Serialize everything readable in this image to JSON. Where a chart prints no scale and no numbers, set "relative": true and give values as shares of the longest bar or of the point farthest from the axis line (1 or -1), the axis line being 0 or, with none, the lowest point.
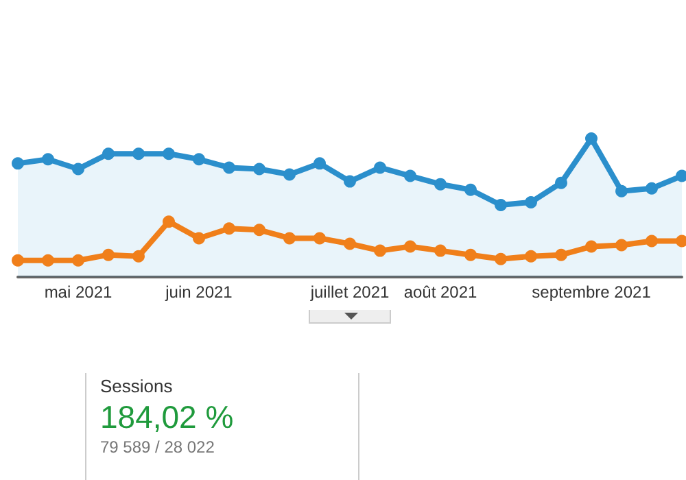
{
  "chart_data": [
    {
      "type": "line",
      "relative": true,
      "categories": [
        null,
        null,
        "mai 2021",
        null,
        null,
        null,
        "juin 2021",
        null,
        null,
        null,
        null,
        "juillet 2021",
        null,
        null,
        "août 2021",
        null,
        null,
        null,
        null,
        "septembre 2021",
        null,
        null,
        null
      ],
      "marker": "circle",
      "series": [
        {
          "type": "area",
          "color": "#2b8fcc",
          "values": [
            0.82,
            0.85,
            0.78,
            0.89,
            0.89,
            0.89,
            0.85,
            0.79,
            0.78,
            0.74,
            0.82,
            0.69,
            0.79,
            0.73,
            0.67,
            0.63,
            0.52,
            0.54,
            0.68,
            1,
            0.62,
            0.64,
            0.73
          ]
        },
        {
          "type": "line",
          "color": "#f07f1a",
          "values": [
            0.12,
            0.12,
            0.12,
            0.16,
            0.15,
            0.4,
            0.28,
            0.35,
            0.34,
            0.28,
            0.28,
            0.24,
            0.19,
            0.22,
            0.19,
            0.16,
            0.13,
            0.15,
            0.16,
            0.22,
            0.23,
            0.26,
            0.26
          ]
        }
      ]
    },
    {
      "type": "other",
      "title": "Sessions",
      "annotations": [
        "184,02 %",
        "79 589 / 28 022"
      ]
    }
  ]
}
